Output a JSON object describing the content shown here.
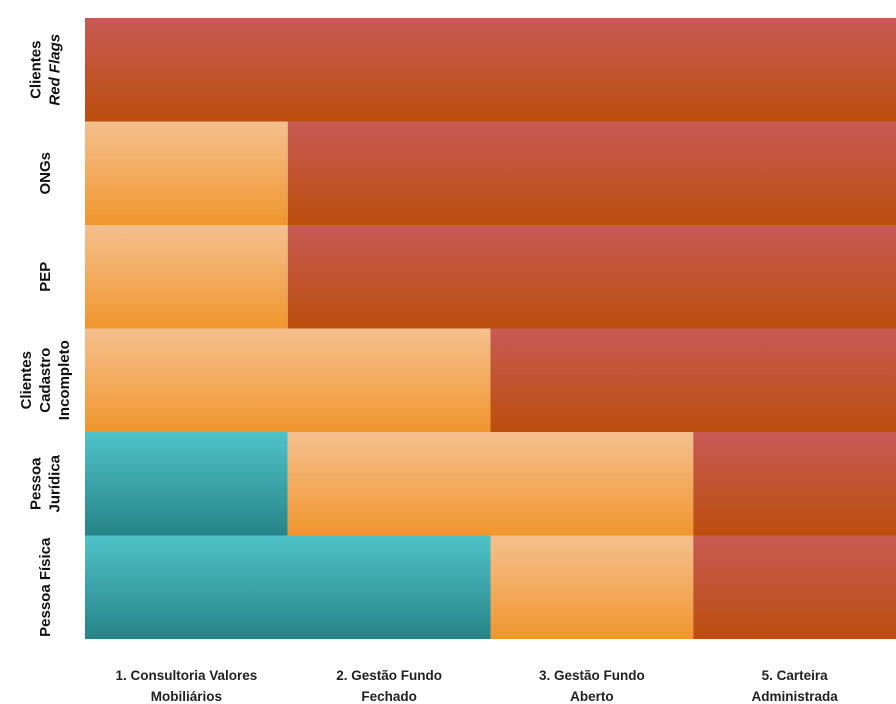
{
  "chart_data": {
    "type": "heatmap",
    "title": "",
    "xlabel": "",
    "ylabel": "",
    "columns": [
      [
        "1. Consultoria Valores",
        "Mobiliários"
      ],
      [
        "2. Gestão Fundo",
        "Fechado"
      ],
      [
        "3. Gestão Fundo",
        "Aberto"
      ],
      [
        "5. Carteira",
        "Administrada"
      ]
    ],
    "rows": [
      {
        "label": [
          "Clientes",
          "Red Flags"
        ],
        "italic_line": 1,
        "levels": [
          "high",
          "high",
          "high",
          "high"
        ]
      },
      {
        "label": [
          "ONGs"
        ],
        "levels": [
          "medium",
          "high",
          "high",
          "high"
        ]
      },
      {
        "label": [
          "PEP"
        ],
        "levels": [
          "medium",
          "high",
          "high",
          "high"
        ]
      },
      {
        "label": [
          "Clientes",
          "Cadastro",
          "Incompleto"
        ],
        "levels": [
          "medium",
          "medium",
          "high",
          "high"
        ]
      },
      {
        "label": [
          "Pessoa",
          "Jurídica"
        ],
        "levels": [
          "low",
          "medium",
          "medium",
          "high"
        ]
      },
      {
        "label": [
          "Pessoa Física"
        ],
        "levels": [
          "low",
          "low",
          "medium",
          "high"
        ]
      }
    ],
    "colors": {
      "high": [
        "#c85a55",
        "#bb4e0c"
      ],
      "medium": [
        "#f5c08e",
        "#f0962e"
      ],
      "low": [
        "#4fc3c8",
        "#268387"
      ]
    }
  }
}
